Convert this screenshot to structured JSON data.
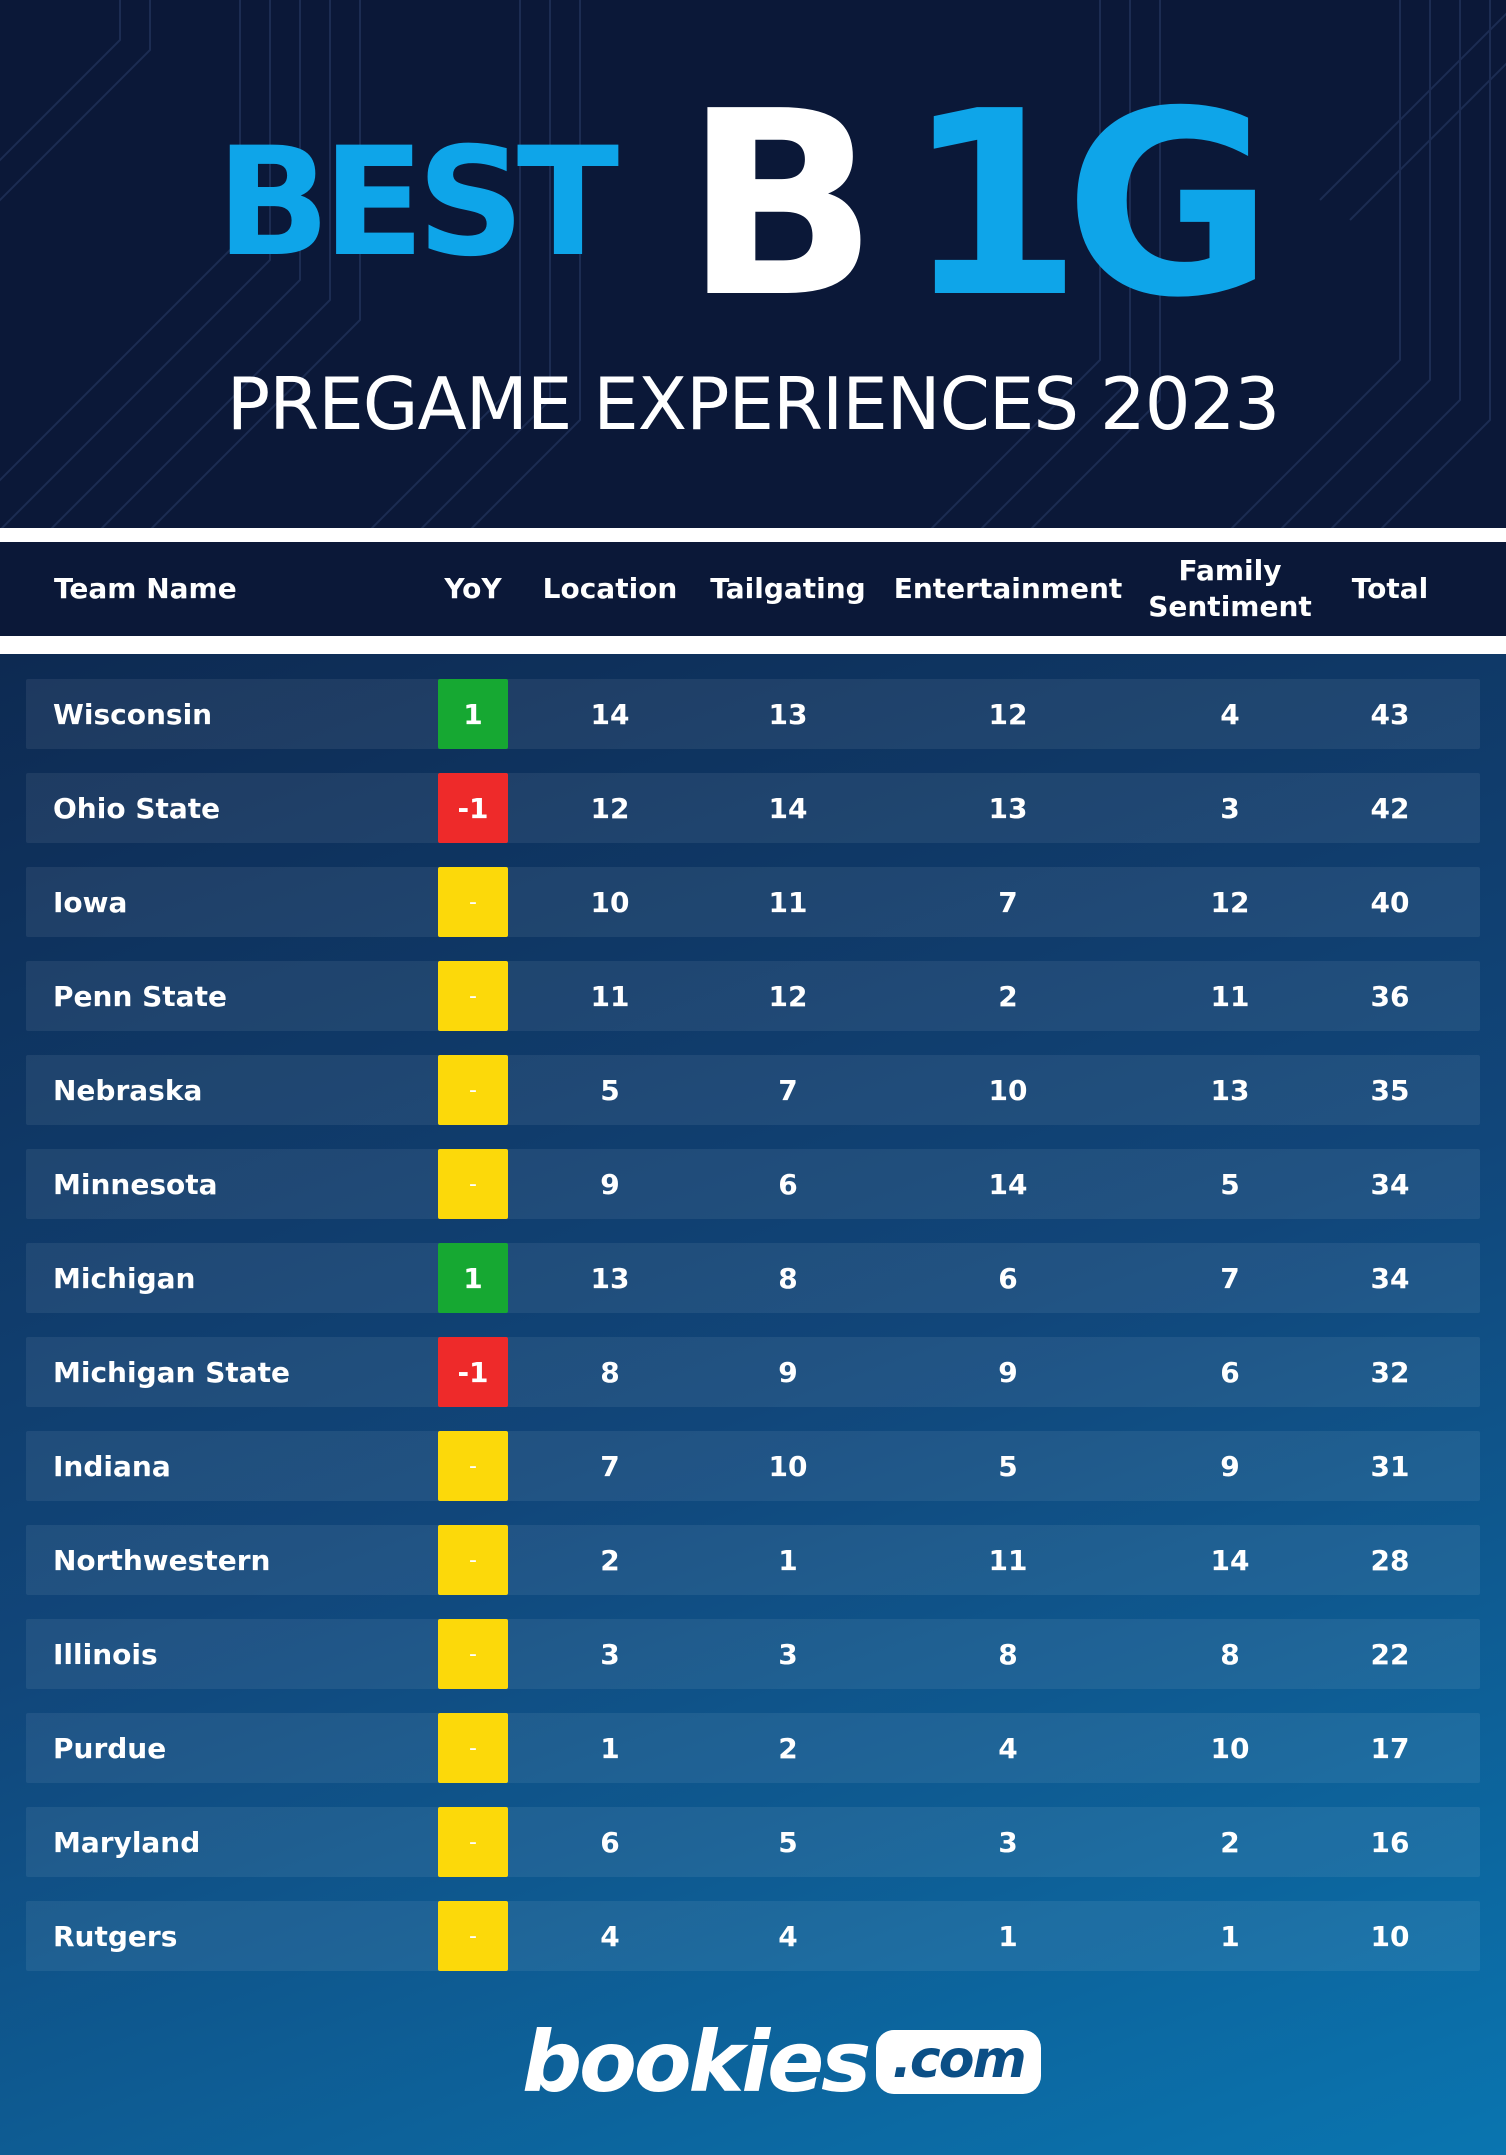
{
  "header": {
    "best": "BEST",
    "b1g_b": "B",
    "b1g_1g": "1G",
    "subtitle": "PREGAME EXPERIENCES 2023"
  },
  "columns": {
    "team": "Team Name",
    "yoy": "YoY",
    "location": "Location",
    "tailgating": "Tailgating",
    "entertainment": "Entertainment",
    "family": "Family Sentiment",
    "total": "Total"
  },
  "colors": {
    "navy": "#0b1838",
    "accent": "#0ea5e9",
    "yoy_up": "#16a832",
    "yoy_down": "#ee2a2a",
    "yoy_same": "#fcd90a"
  },
  "rows": [
    {
      "team": "Wisconsin",
      "yoy": "1",
      "location": "14",
      "tailgating": "13",
      "entertainment": "12",
      "family": "4",
      "total": "43"
    },
    {
      "team": "Ohio State",
      "yoy": "-1",
      "location": "12",
      "tailgating": "14",
      "entertainment": "13",
      "family": "3",
      "total": "42"
    },
    {
      "team": "Iowa",
      "yoy": "-",
      "location": "10",
      "tailgating": "11",
      "entertainment": "7",
      "family": "12",
      "total": "40"
    },
    {
      "team": "Penn State",
      "yoy": "-",
      "location": "11",
      "tailgating": "12",
      "entertainment": "2",
      "family": "11",
      "total": "36"
    },
    {
      "team": "Nebraska",
      "yoy": "-",
      "location": "5",
      "tailgating": "7",
      "entertainment": "10",
      "family": "13",
      "total": "35"
    },
    {
      "team": "Minnesota",
      "yoy": "-",
      "location": "9",
      "tailgating": "6",
      "entertainment": "14",
      "family": "5",
      "total": "34"
    },
    {
      "team": "Michigan",
      "yoy": "1",
      "location": "13",
      "tailgating": "8",
      "entertainment": "6",
      "family": "7",
      "total": "34"
    },
    {
      "team": "Michigan State",
      "yoy": "-1",
      "location": "8",
      "tailgating": "9",
      "entertainment": "9",
      "family": "6",
      "total": "32"
    },
    {
      "team": "Indiana",
      "yoy": "-",
      "location": "7",
      "tailgating": "10",
      "entertainment": "5",
      "family": "9",
      "total": "31"
    },
    {
      "team": "Northwestern",
      "yoy": "-",
      "location": "2",
      "tailgating": "1",
      "entertainment": "11",
      "family": "14",
      "total": "28"
    },
    {
      "team": "Illinois",
      "yoy": "-",
      "location": "3",
      "tailgating": "3",
      "entertainment": "8",
      "family": "8",
      "total": "22"
    },
    {
      "team": "Purdue",
      "yoy": "-",
      "location": "1",
      "tailgating": "2",
      "entertainment": "4",
      "family": "10",
      "total": "17"
    },
    {
      "team": "Maryland",
      "yoy": "-",
      "location": "6",
      "tailgating": "5",
      "entertainment": "3",
      "family": "2",
      "total": "16"
    },
    {
      "team": "Rutgers",
      "yoy": "-",
      "location": "4",
      "tailgating": "4",
      "entertainment": "1",
      "family": "1",
      "total": "10"
    }
  ],
  "footer": {
    "logo_word": "bookies",
    "logo_com": ".com"
  }
}
